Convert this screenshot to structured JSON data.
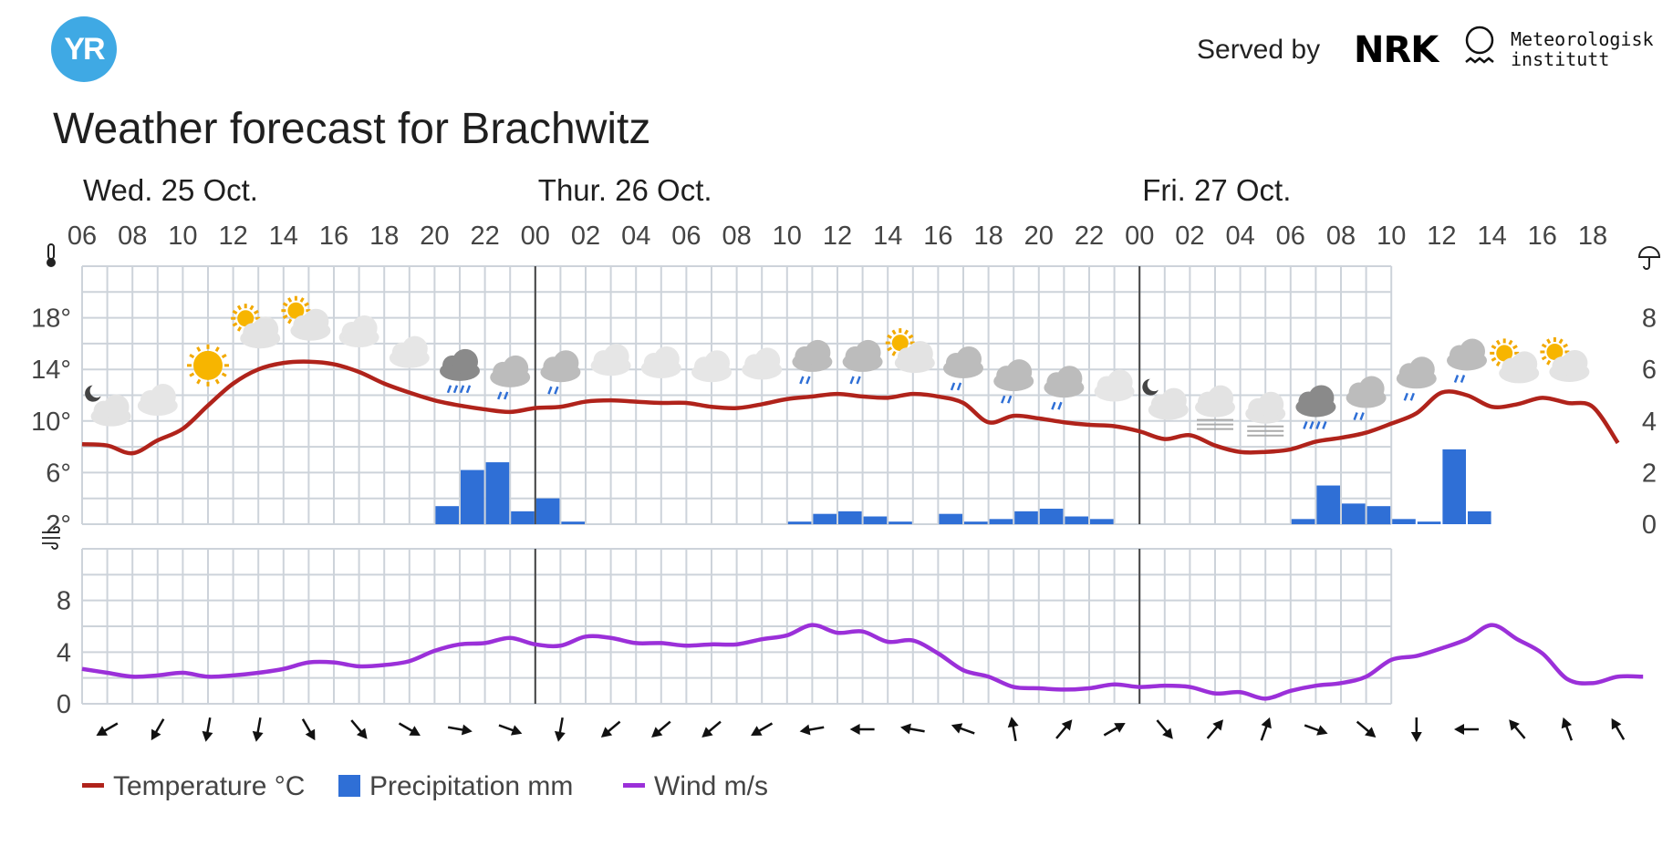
{
  "header": {
    "logo_text": "YR",
    "served_by": "Served by",
    "nrk_logo": "NRK",
    "met_line1": "Meteorologisk",
    "met_line2": "institutt",
    "title": "Weather forecast for Brachwitz"
  },
  "colors": {
    "temperature": "#b0231b",
    "precipitation": "#2f6fd6",
    "wind": "#9b30d9",
    "grid": "#cdd3da",
    "day_divider": "#444444",
    "text": "#444444"
  },
  "chart_data": {
    "type": "line",
    "days": [
      {
        "label": "Wed. 25 Oct.",
        "start_hour": 0
      },
      {
        "label": "Thur. 26 Oct.",
        "start_hour": 18
      },
      {
        "label": "Fri. 27 Oct.",
        "start_hour": 42
      }
    ],
    "hour_labels": [
      "06",
      "08",
      "10",
      "12",
      "14",
      "16",
      "18",
      "20",
      "22",
      "00",
      "02",
      "04",
      "06",
      "08",
      "10",
      "12",
      "14",
      "16",
      "18",
      "20",
      "22",
      "00",
      "02",
      "04",
      "06",
      "08",
      "10",
      "12",
      "14",
      "16",
      "18"
    ],
    "temperature_axis": {
      "ticks": [
        "2°",
        "6°",
        "10°",
        "14°",
        "18°"
      ],
      "min": 2,
      "max": 22,
      "icon": "thermometer-icon"
    },
    "precipitation_axis": {
      "ticks": [
        "0",
        "2",
        "4",
        "6",
        "8"
      ],
      "min": 0,
      "max": 10,
      "icon": "umbrella-icon"
    },
    "wind_axis": {
      "ticks": [
        "0",
        "4",
        "8"
      ],
      "min": 0,
      "max": 12,
      "icon": "wind-icon"
    },
    "series": [
      {
        "name": "Temperature °C",
        "unit": "°C",
        "points": [
          [
            0,
            8.2
          ],
          [
            1,
            8.1
          ],
          [
            2,
            7.5
          ],
          [
            3,
            8.5
          ],
          [
            4,
            9.4
          ],
          [
            5,
            11.2
          ],
          [
            6,
            12.9
          ],
          [
            7,
            14.0
          ],
          [
            8,
            14.5
          ],
          [
            9,
            14.6
          ],
          [
            10,
            14.4
          ],
          [
            11,
            13.8
          ],
          [
            12,
            12.9
          ],
          [
            13,
            12.2
          ],
          [
            14,
            11.6
          ],
          [
            15,
            11.2
          ],
          [
            16,
            10.9
          ],
          [
            17,
            10.7
          ],
          [
            18,
            11.0
          ],
          [
            19,
            11.1
          ],
          [
            20,
            11.5
          ],
          [
            21,
            11.6
          ],
          [
            22,
            11.5
          ],
          [
            23,
            11.4
          ],
          [
            24,
            11.4
          ],
          [
            25,
            11.1
          ],
          [
            26,
            11.0
          ],
          [
            27,
            11.3
          ],
          [
            28,
            11.7
          ],
          [
            29,
            11.9
          ],
          [
            30,
            12.1
          ],
          [
            31,
            11.9
          ],
          [
            32,
            11.8
          ],
          [
            33,
            12.1
          ],
          [
            34,
            11.9
          ],
          [
            35,
            11.4
          ],
          [
            36,
            9.9
          ],
          [
            37,
            10.4
          ],
          [
            38,
            10.2
          ],
          [
            39,
            9.9
          ],
          [
            40,
            9.7
          ],
          [
            41,
            9.6
          ],
          [
            42,
            9.2
          ],
          [
            43,
            8.6
          ],
          [
            44,
            8.9
          ],
          [
            45,
            8.1
          ],
          [
            46,
            7.6
          ],
          [
            47,
            7.6
          ],
          [
            48,
            7.8
          ],
          [
            49,
            8.4
          ],
          [
            50,
            8.7
          ],
          [
            51,
            9.1
          ],
          [
            52,
            9.8
          ],
          [
            53,
            10.6
          ],
          [
            54,
            12.2
          ],
          [
            55,
            12.0
          ],
          [
            56,
            11.1
          ],
          [
            57,
            11.3
          ],
          [
            58,
            11.8
          ],
          [
            59,
            11.4
          ],
          [
            60,
            11.1
          ],
          [
            61,
            8.3
          ]
        ]
      },
      {
        "name": "Precipitation mm",
        "unit": "mm",
        "bars": [
          [
            14,
            0.7
          ],
          [
            15,
            2.1
          ],
          [
            16,
            2.4
          ],
          [
            17,
            0.5
          ],
          [
            18,
            1.0
          ],
          [
            19,
            0.1
          ],
          [
            28,
            0.1
          ],
          [
            29,
            0.4
          ],
          [
            30,
            0.5
          ],
          [
            31,
            0.3
          ],
          [
            32,
            0.1
          ],
          [
            34,
            0.4
          ],
          [
            35,
            0.1
          ],
          [
            36,
            0.2
          ],
          [
            37,
            0.5
          ],
          [
            38,
            0.6
          ],
          [
            39,
            0.3
          ],
          [
            40,
            0.2
          ],
          [
            48,
            0.2
          ],
          [
            49,
            1.5
          ],
          [
            50,
            0.8
          ],
          [
            51,
            0.7
          ],
          [
            52,
            0.2
          ],
          [
            53,
            0.1
          ],
          [
            54,
            2.9
          ],
          [
            55,
            0.5
          ]
        ]
      },
      {
        "name": "Wind m/s",
        "unit": "m/s",
        "points": [
          [
            0,
            2.7
          ],
          [
            1,
            2.4
          ],
          [
            2,
            2.1
          ],
          [
            3,
            2.2
          ],
          [
            4,
            2.4
          ],
          [
            5,
            2.1
          ],
          [
            6,
            2.2
          ],
          [
            7,
            2.4
          ],
          [
            8,
            2.7
          ],
          [
            9,
            3.2
          ],
          [
            10,
            3.2
          ],
          [
            11,
            2.9
          ],
          [
            12,
            3.0
          ],
          [
            13,
            3.3
          ],
          [
            14,
            4.1
          ],
          [
            15,
            4.6
          ],
          [
            16,
            4.7
          ],
          [
            17,
            5.1
          ],
          [
            18,
            4.6
          ],
          [
            19,
            4.5
          ],
          [
            20,
            5.2
          ],
          [
            21,
            5.1
          ],
          [
            22,
            4.7
          ],
          [
            23,
            4.7
          ],
          [
            24,
            4.5
          ],
          [
            25,
            4.6
          ],
          [
            26,
            4.6
          ],
          [
            27,
            5.0
          ],
          [
            28,
            5.3
          ],
          [
            29,
            6.1
          ],
          [
            30,
            5.5
          ],
          [
            31,
            5.6
          ],
          [
            32,
            4.8
          ],
          [
            33,
            4.9
          ],
          [
            34,
            3.9
          ],
          [
            35,
            2.6
          ],
          [
            36,
            2.1
          ],
          [
            37,
            1.3
          ],
          [
            38,
            1.2
          ],
          [
            39,
            1.1
          ],
          [
            40,
            1.2
          ],
          [
            41,
            1.5
          ],
          [
            42,
            1.3
          ],
          [
            43,
            1.4
          ],
          [
            44,
            1.3
          ],
          [
            45,
            0.8
          ],
          [
            46,
            0.9
          ],
          [
            47,
            0.4
          ],
          [
            48,
            1.0
          ],
          [
            49,
            1.4
          ],
          [
            50,
            1.6
          ],
          [
            51,
            2.1
          ],
          [
            52,
            3.4
          ],
          [
            53,
            3.7
          ],
          [
            54,
            4.3
          ],
          [
            55,
            5.0
          ],
          [
            56,
            6.1
          ],
          [
            57,
            5.0
          ],
          [
            58,
            3.9
          ],
          [
            59,
            1.9
          ],
          [
            60,
            1.6
          ],
          [
            61,
            2.1
          ],
          [
            62,
            2.1
          ]
        ]
      }
    ],
    "weather_symbols": [
      "partly-cloudy-night-icon",
      "cloudy-icon",
      "sun-icon",
      "partly-cloudy-day-icon",
      "partly-cloudy-day-icon",
      "cloudy-icon",
      "cloudy-icon",
      "heavy-rain-icon",
      "light-rain-icon",
      "light-rain-icon",
      "cloudy-icon",
      "cloudy-icon",
      "cloudy-icon",
      "cloudy-icon",
      "light-rain-icon",
      "light-rain-icon",
      "partly-cloudy-day-icon",
      "light-rain-icon",
      "light-rain-icon",
      "light-rain-icon",
      "cloudy-icon",
      "partly-cloudy-night-icon",
      "fog-icon",
      "fog-icon",
      "heavy-rain-icon",
      "light-rain-icon",
      "light-rain-icon",
      "light-rain-icon",
      "partly-cloudy-day-icon",
      "partly-cloudy-day-icon"
    ],
    "wind_directions_deg": [
      240,
      210,
      190,
      190,
      150,
      140,
      120,
      100,
      110,
      190,
      230,
      230,
      230,
      240,
      260,
      270,
      280,
      290,
      350,
      40,
      60,
      140,
      40,
      20,
      110,
      130,
      180,
      270,
      320,
      340,
      330
    ],
    "legend": [
      {
        "label": "Temperature °C",
        "kind": "line",
        "color": "#b0231b"
      },
      {
        "label": "Precipitation mm",
        "kind": "bar",
        "color": "#2f6fd6"
      },
      {
        "label": "Wind m/s",
        "kind": "line",
        "color": "#9b30d9"
      }
    ],
    "grid": true
  }
}
